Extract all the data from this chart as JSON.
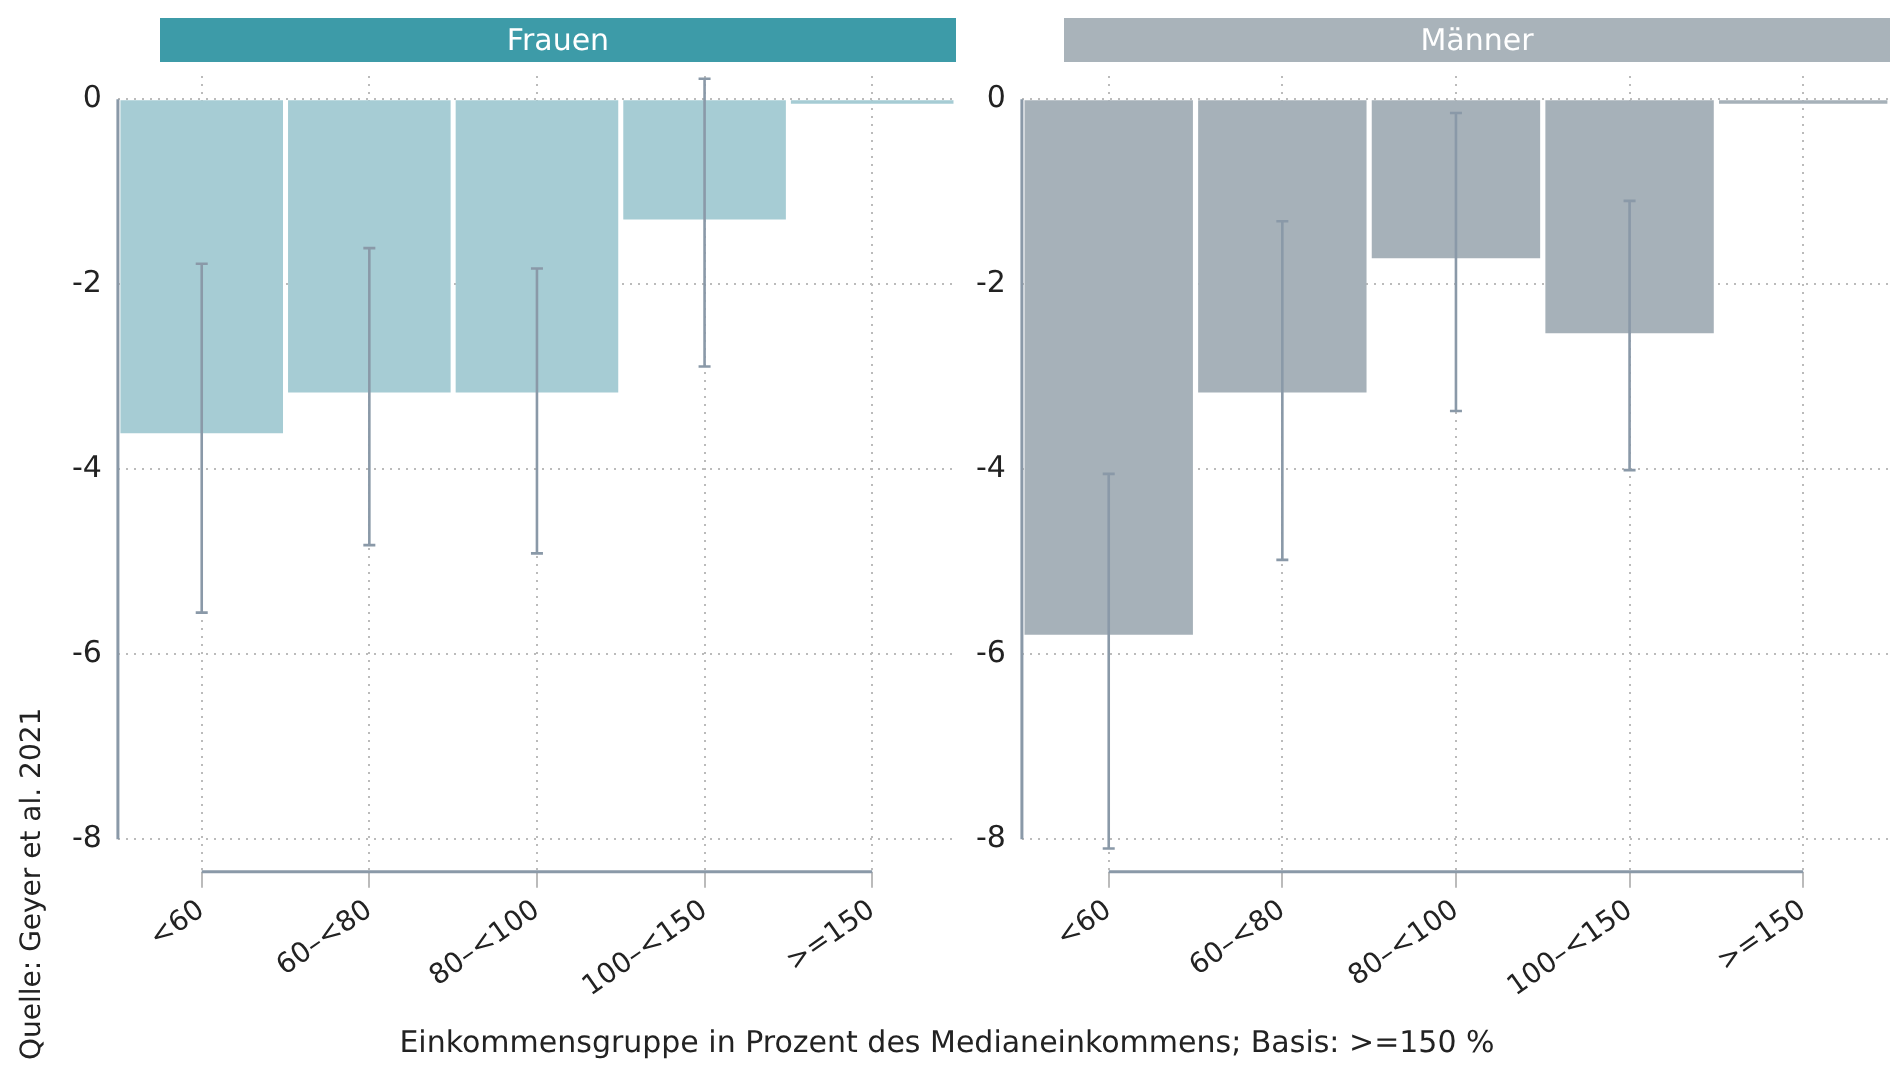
{
  "chart_data": [
    {
      "type": "bar",
      "title": "Frauen",
      "categories": [
        "<60",
        "60–<80",
        "80–<100",
        "100–<150",
        ">=150"
      ],
      "values": [
        -3.61,
        -3.17,
        -3.17,
        -1.3,
        -0.05
      ],
      "errors": [
        [
          -5.55,
          -1.78
        ],
        [
          -4.82,
          -1.61
        ],
        [
          -4.91,
          -1.83
        ],
        [
          -2.89,
          0.22
        ],
        null
      ],
      "color": "#a6ccd4",
      "ylim": [
        -8.35,
        0.25
      ],
      "yticks": [
        -8,
        -6,
        -4,
        -2,
        0
      ],
      "grid": true,
      "legend": false,
      "xlabel": "Einkommensgruppe in Prozent des Medianeinkommens; Basis: >=150 %",
      "annotations": [
        "Quelle: Geyer et al. 2021"
      ]
    },
    {
      "type": "bar",
      "title": "Männer",
      "categories": [
        "<60",
        "60–<80",
        "80–<100",
        "100–<150",
        ">=150"
      ],
      "values": [
        -5.79,
        -3.17,
        -1.72,
        -2.53,
        -0.05
      ],
      "errors": [
        [
          -8.1,
          -4.05
        ],
        [
          -4.98,
          -1.32
        ],
        [
          -3.37,
          -0.15
        ],
        [
          -4.01,
          -1.1
        ],
        null
      ],
      "color": "#a6b1b9",
      "ylim": [
        -8.35,
        0.25
      ],
      "yticks": [
        -8,
        -6,
        -4,
        -2,
        0
      ],
      "grid": true,
      "legend": false
    }
  ]
}
